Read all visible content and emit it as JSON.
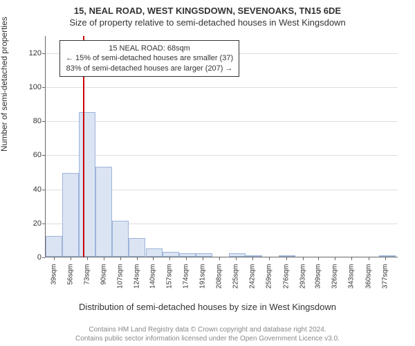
{
  "title_line1": "15, NEAL ROAD, WEST KINGSDOWN, SEVENOAKS, TN15 6DE",
  "title_line2": "Size of property relative to semi-detached houses in West Kingsdown",
  "ylabel": "Number of semi-detached properties",
  "xlabel": "Distribution of semi-detached houses by size in West Kingsdown",
  "footer_line1": "Contains HM Land Registry data © Crown copyright and database right 2024.",
  "footer_line2": "Contains public sector information licensed under the Open Government Licence v3.0.",
  "annotation": {
    "line1": "15 NEAL ROAD: 68sqm",
    "line2": "← 15% of semi-detached houses are smaller (37)",
    "line3": "83% of semi-detached houses are larger (207) →"
  },
  "chart": {
    "type": "histogram",
    "background_color": "#ffffff",
    "grid_color": "#dddddd",
    "axis_color": "#666666",
    "bar_fill": "#dbe4f3",
    "bar_stroke": "#9db3d9",
    "marker_color": "#cc0000",
    "marker_x": 68,
    "xmin": 30,
    "xmax": 390,
    "ymin": 0,
    "ymax": 130,
    "yticks": [
      0,
      20,
      40,
      60,
      80,
      100,
      120
    ],
    "xticks": [
      39,
      56,
      73,
      90,
      107,
      124,
      140,
      157,
      174,
      191,
      208,
      225,
      242,
      259,
      276,
      293,
      309,
      326,
      343,
      360,
      377
    ],
    "xtick_suffix": "sqm",
    "bin_width": 17,
    "bins": [
      {
        "start": 30,
        "count": 12
      },
      {
        "start": 47,
        "count": 49
      },
      {
        "start": 64,
        "count": 85
      },
      {
        "start": 81,
        "count": 53
      },
      {
        "start": 98,
        "count": 21
      },
      {
        "start": 115,
        "count": 11
      },
      {
        "start": 132,
        "count": 5
      },
      {
        "start": 149,
        "count": 3
      },
      {
        "start": 166,
        "count": 2
      },
      {
        "start": 183,
        "count": 2
      },
      {
        "start": 200,
        "count": 0
      },
      {
        "start": 217,
        "count": 2
      },
      {
        "start": 234,
        "count": 1
      },
      {
        "start": 251,
        "count": 0
      },
      {
        "start": 268,
        "count": 1
      },
      {
        "start": 285,
        "count": 0
      },
      {
        "start": 302,
        "count": 0
      },
      {
        "start": 319,
        "count": 0
      },
      {
        "start": 336,
        "count": 0
      },
      {
        "start": 353,
        "count": 0
      },
      {
        "start": 370,
        "count": 1
      }
    ],
    "title_fontsize": 13,
    "label_fontsize": 12,
    "tick_fontsize": 11,
    "annotation_fontsize": 11
  }
}
